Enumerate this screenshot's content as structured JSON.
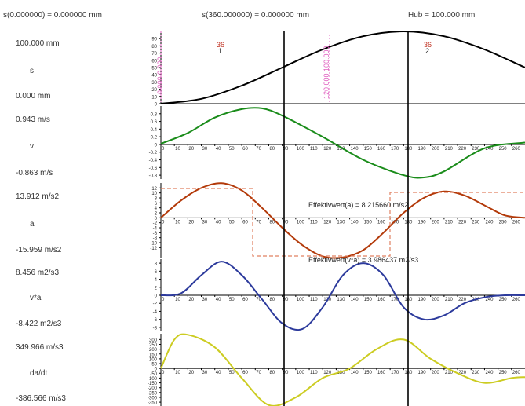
{
  "header": {
    "s_start": "s(0.000000) = 0.000000 mm",
    "s_end": "s(360.000000) = 0.000000 mm",
    "hub": "Hub = 100.000 mm"
  },
  "rows": [
    {
      "key": "s",
      "max": "100.000 mm",
      "name": "s",
      "min": "0.000 mm"
    },
    {
      "key": "v",
      "max": "0.943 m/s",
      "name": "v",
      "min": "-0.863 m/s"
    },
    {
      "key": "a",
      "max": "13.912 m/s2",
      "name": "a",
      "min": "-15.959 m/s2"
    },
    {
      "key": "va",
      "max": "8.456 m2/s3",
      "name": "v*a",
      "min": "-8.422 m2/s3"
    },
    {
      "key": "j",
      "max": "349.966 m/s3",
      "name": "da/dt",
      "min": "-386.566 m/s3"
    }
  ],
  "colors": {
    "s": "#000000",
    "v": "#1a8c1a",
    "a": "#b33a0a",
    "va": "#2c3a9c",
    "j": "#cccc22",
    "dash": "#e08060",
    "pink": "#e060c0",
    "red": "#c03020"
  },
  "annotations": {
    "eff_a": "Effektivwert(a) = 8.215660 m/s2",
    "eff_va": "Effektivwert(v*a) = 3.986437 m2/s3",
    "marker1_top": "36",
    "marker1_bottom": "1",
    "marker2_top": "36",
    "marker2_bottom": "2",
    "pink_left": "0.000  0.000",
    "pink_mid": "120.000  100.000"
  },
  "chart_data": [
    {
      "type": "line",
      "name": "s",
      "ylim": [
        0,
        100
      ],
      "yticks": [
        0,
        10,
        20,
        30,
        40,
        50,
        60,
        70,
        80,
        90
      ],
      "x": [
        0,
        30,
        60,
        90,
        120,
        150,
        180,
        210,
        240,
        270
      ],
      "values": [
        0,
        6.7,
        25,
        50,
        75,
        93.3,
        100,
        93.3,
        75,
        50
      ]
    },
    {
      "type": "line",
      "name": "v",
      "ylim": [
        -0.9,
        1.0
      ],
      "yticks": [
        -0.8,
        -0.6,
        -0.4,
        -0.2,
        0,
        0.2,
        0.4,
        0.6,
        0.8
      ],
      "x": [
        0,
        20,
        40,
        60,
        75,
        90,
        120,
        150,
        180,
        195,
        210,
        240,
        270
      ],
      "values": [
        0.02,
        0.3,
        0.7,
        0.92,
        0.94,
        0.75,
        0.2,
        -0.4,
        -0.8,
        -0.86,
        -0.7,
        -0.1,
        0.05
      ]
    },
    {
      "type": "line",
      "name": "a",
      "ylim": [
        -16,
        14
      ],
      "yticks": [
        -12,
        -10,
        -8,
        -6,
        -4,
        -2,
        0,
        2,
        4,
        6,
        8,
        10,
        12
      ],
      "x": [
        0,
        15,
        30,
        45,
        60,
        75,
        90,
        105,
        120,
        135,
        150,
        165,
        180,
        195,
        210,
        225,
        240,
        255,
        270
      ],
      "values": [
        0,
        7,
        12,
        13.9,
        11,
        4,
        -4,
        -11,
        -15.5,
        -15.9,
        -13,
        -6,
        2,
        8,
        10.6,
        9,
        5,
        1,
        0
      ]
    },
    {
      "type": "line",
      "name": "v*a",
      "ylim": [
        -9,
        9
      ],
      "yticks": [
        -8,
        -6,
        -4,
        -2,
        0,
        2,
        4,
        6,
        8
      ],
      "x": [
        0,
        15,
        30,
        45,
        60,
        75,
        90,
        105,
        120,
        135,
        150,
        165,
        180,
        195,
        210,
        225,
        240,
        255,
        270
      ],
      "values": [
        0,
        0.5,
        5,
        8.4,
        5,
        -1,
        -7,
        -8.4,
        -3,
        5,
        8,
        5,
        -3,
        -6,
        -5,
        -2,
        -0.5,
        0,
        0
      ]
    },
    {
      "type": "line",
      "name": "da/dt",
      "ylim": [
        -390,
        360
      ],
      "yticks": [
        -350,
        -300,
        -250,
        -200,
        -150,
        -100,
        -50,
        0,
        50,
        100,
        150,
        200,
        250,
        300
      ],
      "x": [
        0,
        10,
        20,
        40,
        60,
        80,
        100,
        120,
        140,
        160,
        180,
        200,
        220,
        240,
        260,
        270
      ],
      "values": [
        0,
        300,
        349,
        220,
        -100,
        -380,
        -300,
        -100,
        0,
        200,
        300,
        100,
        -50,
        -150,
        -100,
        -90
      ]
    }
  ],
  "x_ticks": [
    "0",
    "10",
    "20",
    "30",
    "40",
    "50",
    "60",
    "70",
    "80",
    "90",
    "100",
    "110",
    "120",
    "130",
    "140",
    "150",
    "160",
    "170",
    "180",
    "190",
    "200",
    "210",
    "220",
    "230",
    "240",
    "250",
    "260"
  ]
}
